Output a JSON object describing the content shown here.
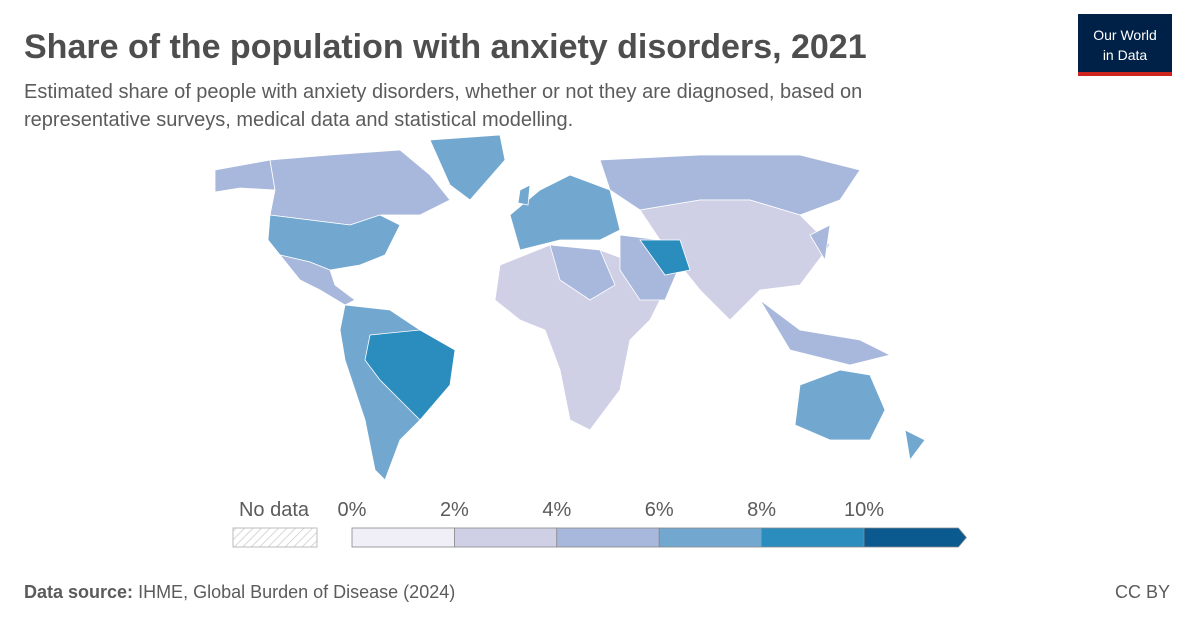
{
  "header": {
    "title": "Share of the population with anxiety disorders, 2021",
    "subtitle_lines": [
      "Estimated share of people with anxiety disorders, whether or not they are diagnosed, based on",
      "representative surveys, medical data and statistical modelling."
    ],
    "logo_lines": [
      "Our World",
      "in Data"
    ]
  },
  "legend": {
    "no_data": "No data",
    "labels": [
      "0%",
      "2%",
      "4%",
      "6%",
      "8%",
      "10%"
    ],
    "colors": [
      "#f0eef6",
      "#cfd0e6",
      "#a8b8dc",
      "#72a8d0",
      "#2b8cbe",
      "#0b5a8f"
    ]
  },
  "footer": {
    "source_label": "Data source:",
    "source": "IHME, Global Burden of Disease (2024)",
    "license": "CC BY"
  }
}
